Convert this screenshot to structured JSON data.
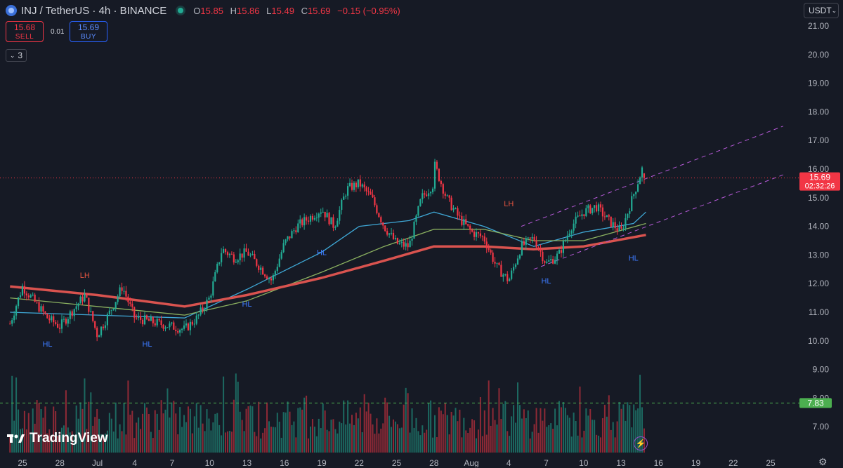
{
  "header": {
    "symbol_title": "INJ / TetherUS · 4h · BINANCE",
    "ohlc": [
      {
        "label": "O",
        "value": "15.85"
      },
      {
        "label": "H",
        "value": "15.86"
      },
      {
        "label": "L",
        "value": "15.49"
      },
      {
        "label": "C",
        "value": "15.69"
      },
      {
        "label": "",
        "value": "−0.15 (−0.95%)"
      }
    ]
  },
  "trade": {
    "sell_price": "15.68",
    "sell_label": "SELL",
    "spread": "0.01",
    "buy_price": "15.69",
    "buy_label": "BUY"
  },
  "indicators_collapse": {
    "count": "3",
    "icon": "chevron-down-icon"
  },
  "currency": {
    "label": "USDT",
    "icon": "chevron-down-icon"
  },
  "branding": {
    "name": "TradingView"
  },
  "colors": {
    "background": "#161a25",
    "up": "#22ab94",
    "down": "#f23645",
    "ma_fast": "#3fa8d6",
    "ma_mid": "#8bb160",
    "ma_slow": "#d9534f",
    "channel": "#b659d8",
    "hl_label": "#3d7bff",
    "lh_label": "#e2543f",
    "volume_level": "#4caf50"
  },
  "chart_data": {
    "type": "candlestick",
    "symbol": "INJ/USDT",
    "interval": "4h",
    "exchange": "BINANCE",
    "y_axis": {
      "ticks": [
        "21.00",
        "20.00",
        "19.00",
        "18.00",
        "17.00",
        "16.00",
        "15.00",
        "14.00",
        "13.00",
        "12.00",
        "11.00",
        "10.00",
        "9.00",
        "8.00",
        "7.00"
      ],
      "ylim": [
        6.3,
        21.6
      ],
      "position": "right"
    },
    "x_axis": {
      "ticks": [
        "25",
        "28",
        "Jul",
        "4",
        "7",
        "10",
        "13",
        "16",
        "19",
        "22",
        "25",
        "28",
        "Aug",
        "4",
        "7",
        "10",
        "13",
        "16",
        "19",
        "22",
        "25"
      ]
    },
    "grid": false,
    "price_anchors": [
      {
        "date": "Jun 24",
        "price": 10.6
      },
      {
        "date": "Jun 25",
        "price": 11.9
      },
      {
        "date": "Jun 27",
        "price": 10.8
      },
      {
        "date": "Jun 28",
        "price": 10.5
      },
      {
        "date": "Jun 30",
        "price": 11.6
      },
      {
        "date": "Jul 1",
        "price": 10.2
      },
      {
        "date": "Jul 2",
        "price": 11.0
      },
      {
        "date": "Jul 3",
        "price": 11.9
      },
      {
        "date": "Jul 4",
        "price": 10.8
      },
      {
        "date": "Jul 6",
        "price": 10.6
      },
      {
        "date": "Jul 8",
        "price": 10.4
      },
      {
        "date": "Jul 9",
        "price": 10.8
      },
      {
        "date": "Jul 10",
        "price": 11.5
      },
      {
        "date": "Jul 11",
        "price": 13.2
      },
      {
        "date": "Jul 12",
        "price": 12.9
      },
      {
        "date": "Jul 13",
        "price": 13.1
      },
      {
        "date": "Jul 15",
        "price": 12.1
      },
      {
        "date": "Jul 16",
        "price": 13.4
      },
      {
        "date": "Jul 17",
        "price": 14.0
      },
      {
        "date": "Jul 18",
        "price": 14.3
      },
      {
        "date": "Jul 19",
        "price": 14.6
      },
      {
        "date": "Jul 20",
        "price": 14.0
      },
      {
        "date": "Jul 21",
        "price": 15.3
      },
      {
        "date": "Jul 22",
        "price": 15.5
      },
      {
        "date": "Jul 23",
        "price": 15.0
      },
      {
        "date": "Jul 24",
        "price": 14.0
      },
      {
        "date": "Jul 25",
        "price": 13.4
      },
      {
        "date": "Jul 26",
        "price": 13.3
      },
      {
        "date": "Jul 27",
        "price": 15.0
      },
      {
        "date": "Jul 28",
        "price": 15.5
      },
      {
        "date": "Jul 28",
        "price": 16.2
      },
      {
        "date": "Jul 29",
        "price": 15.0
      },
      {
        "date": "Jul 30",
        "price": 14.3
      },
      {
        "date": "Jul 31",
        "price": 13.8
      },
      {
        "date": "Aug 1",
        "price": 13.6
      },
      {
        "date": "Aug 2",
        "price": 12.6
      },
      {
        "date": "Aug 3",
        "price": 12.1
      },
      {
        "date": "Aug 4",
        "price": 13.3
      },
      {
        "date": "Aug 5",
        "price": 13.6
      },
      {
        "date": "Aug 6",
        "price": 12.7
      },
      {
        "date": "Aug 7",
        "price": 13.0
      },
      {
        "date": "Aug 8",
        "price": 14.0
      },
      {
        "date": "Aug 9",
        "price": 14.5
      },
      {
        "date": "Aug 10",
        "price": 14.7
      },
      {
        "date": "Aug 11",
        "price": 14.2
      },
      {
        "date": "Aug 12",
        "price": 13.8
      },
      {
        "date": "Aug 13",
        "price": 15.1
      },
      {
        "date": "Aug 14",
        "price": 16.4
      },
      {
        "date": "Aug 14",
        "price": 15.69
      }
    ],
    "moving_averages": [
      {
        "name": "MA fast",
        "color": "#3fa8d6",
        "values": [
          {
            "date": "Jun 24",
            "price": 11.0
          },
          {
            "date": "Jul 1",
            "price": 10.9
          },
          {
            "date": "Jul 8",
            "price": 10.8
          },
          {
            "date": "Jul 13",
            "price": 11.8
          },
          {
            "date": "Jul 19",
            "price": 13.1
          },
          {
            "date": "Jul 22",
            "price": 14.0
          },
          {
            "date": "Jul 26",
            "price": 14.2
          },
          {
            "date": "Jul 28",
            "price": 14.5
          },
          {
            "date": "Aug 1",
            "price": 14.0
          },
          {
            "date": "Aug 5",
            "price": 13.3
          },
          {
            "date": "Aug 9",
            "price": 13.8
          },
          {
            "date": "Aug 13",
            "price": 14.1
          },
          {
            "date": "Aug 14",
            "price": 14.5
          }
        ]
      },
      {
        "name": "MA mid",
        "color": "#8bb160",
        "values": [
          {
            "date": "Jun 24",
            "price": 11.5
          },
          {
            "date": "Jul 1",
            "price": 11.2
          },
          {
            "date": "Jul 8",
            "price": 10.9
          },
          {
            "date": "Jul 13",
            "price": 11.4
          },
          {
            "date": "Jul 19",
            "price": 12.4
          },
          {
            "date": "Jul 24",
            "price": 13.3
          },
          {
            "date": "Jul 28",
            "price": 13.9
          },
          {
            "date": "Aug 1",
            "price": 13.9
          },
          {
            "date": "Aug 5",
            "price": 13.5
          },
          {
            "date": "Aug 9",
            "price": 13.5
          },
          {
            "date": "Aug 14",
            "price": 14.1
          }
        ]
      },
      {
        "name": "MA slow",
        "color": "#d9534f",
        "values": [
          {
            "date": "Jun 24",
            "price": 11.9
          },
          {
            "date": "Jul 1",
            "price": 11.6
          },
          {
            "date": "Jul 8",
            "price": 11.2
          },
          {
            "date": "Jul 13",
            "price": 11.6
          },
          {
            "date": "Jul 19",
            "price": 12.2
          },
          {
            "date": "Jul 24",
            "price": 12.8
          },
          {
            "date": "Jul 28",
            "price": 13.3
          },
          {
            "date": "Aug 1",
            "price": 13.3
          },
          {
            "date": "Aug 5",
            "price": 13.2
          },
          {
            "date": "Aug 9",
            "price": 13.3
          },
          {
            "date": "Aug 14",
            "price": 13.7
          }
        ]
      }
    ],
    "channel": {
      "upper": [
        {
          "date": "Aug 4",
          "price": 14.0
        },
        {
          "date": "Aug 25",
          "price": 17.5
        }
      ],
      "lower": [
        {
          "date": "Aug 5",
          "price": 12.5
        },
        {
          "date": "Aug 25",
          "price": 15.8
        }
      ]
    },
    "annotations": [
      {
        "text": "LH",
        "date": "Jun 30",
        "price": 12.2
      },
      {
        "text": "HL",
        "date": "Jun 27",
        "price": 9.8
      },
      {
        "text": "HL",
        "date": "Jul 5",
        "price": 9.8
      },
      {
        "text": "HL",
        "date": "Jul 13",
        "price": 11.2
      },
      {
        "text": "HL",
        "date": "Jul 19",
        "price": 13.0
      },
      {
        "text": "LH",
        "date": "Aug 3",
        "price": 14.7
      },
      {
        "text": "HL",
        "date": "Aug 6",
        "price": 12.0
      },
      {
        "text": "HL",
        "date": "Aug 13",
        "price": 12.8
      }
    ],
    "current_price": {
      "value": "15.69",
      "countdown": "02:32:26"
    },
    "volume_level": {
      "value": "7.83"
    }
  }
}
